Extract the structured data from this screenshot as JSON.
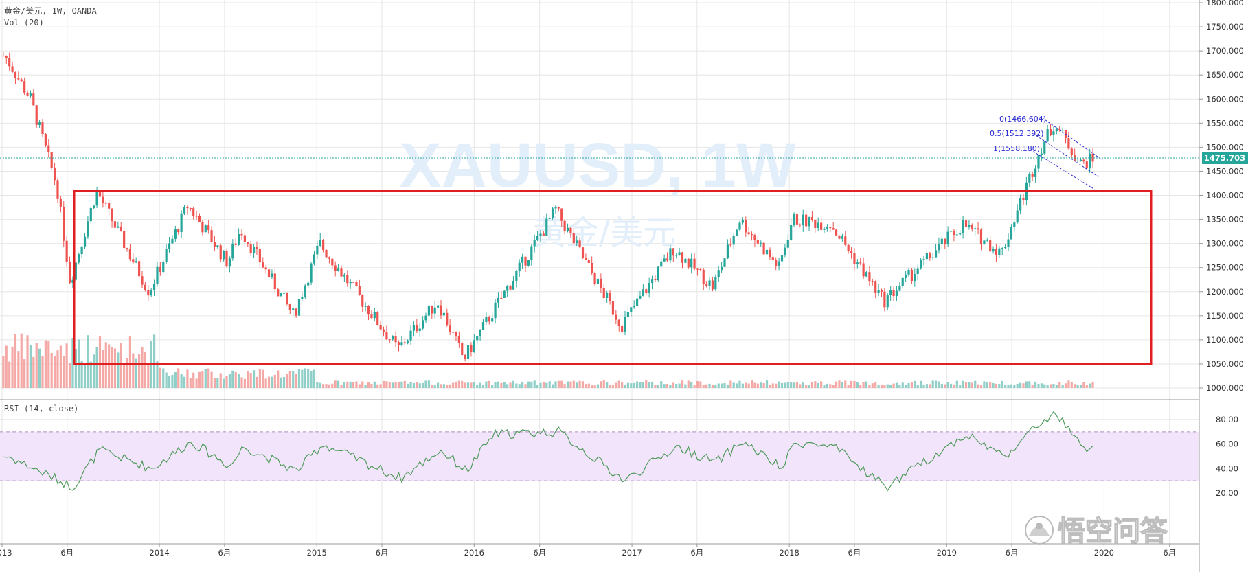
{
  "header": {
    "symbol_line": "黄金/美元, 1W, OANDA",
    "volume_label": "Vol (20)",
    "rsi_label": "RSI (14, close)"
  },
  "watermark": {
    "main": "XAUUSD, 1W",
    "sub": "黄金/美元"
  },
  "logo_text": "悟空问答",
  "colors": {
    "up": "#26a69a",
    "down": "#ef5350",
    "up_vol": "#8fcfc8",
    "down_vol": "#f4a9a6",
    "box": "#e02020",
    "last_price_bg": "#26a69a",
    "rsi_band": "#f1e4fb",
    "rsi_line": "#4f9a5a",
    "fib": "#2a2ad0"
  },
  "price_axis": {
    "ticks": [
      "1800.000",
      "1750.000",
      "1700.000",
      "1650.000",
      "1600.000",
      "1550.000",
      "1500.000",
      "1450.000",
      "1400.000",
      "1350.000",
      "1300.000",
      "1250.000",
      "1200.000",
      "1150.000",
      "1100.000",
      "1050.000",
      "1000.000"
    ],
    "min": 1000,
    "max": 1800
  },
  "last_price": "1475.703",
  "rsi_axis": {
    "ticks": [
      "80.00",
      "60.00",
      "40.00",
      "20.00"
    ],
    "band_low": 30,
    "band_high": 70
  },
  "x_axis": {
    "labels": [
      "2013",
      "6月",
      "2014",
      "6月",
      "2015",
      "6月",
      "2016",
      "6月",
      "2017",
      "6月",
      "2018",
      "6月",
      "2019",
      "6月",
      "2020",
      "6月"
    ]
  },
  "fibonacci": {
    "levels": [
      "0(1466.604)",
      "0.5(1512.392)",
      "1(1558.180)"
    ]
  },
  "chart_data": {
    "type": "candlestick",
    "title": "黄金/美元, 1W, OANDA",
    "ylim": [
      1000,
      1800
    ],
    "key_prices": [
      [
        "2013-01",
        1690
      ],
      [
        "2013-03",
        1600
      ],
      [
        "2013-05",
        1420
      ],
      [
        "2013-06",
        1220
      ],
      [
        "2013-08",
        1410
      ],
      [
        "2013-12",
        1200
      ],
      [
        "2014-03",
        1380
      ],
      [
        "2014-06",
        1260
      ],
      [
        "2014-07",
        1330
      ],
      [
        "2014-11",
        1150
      ],
      [
        "2015-01",
        1300
      ],
      [
        "2015-07",
        1080
      ],
      [
        "2015-10",
        1180
      ],
      [
        "2015-12",
        1060
      ],
      [
        "2016-07",
        1370
      ],
      [
        "2016-12",
        1130
      ],
      [
        "2017-04",
        1290
      ],
      [
        "2017-07",
        1210
      ],
      [
        "2017-09",
        1350
      ],
      [
        "2017-12",
        1250
      ],
      [
        "2018-01",
        1350
      ],
      [
        "2018-04",
        1340
      ],
      [
        "2018-08",
        1180
      ],
      [
        "2019-02",
        1340
      ],
      [
        "2019-05",
        1280
      ],
      [
        "2019-08",
        1500
      ],
      [
        "2019-09",
        1550
      ],
      [
        "2019-11",
        1465
      ],
      [
        "2019-12",
        1475
      ]
    ],
    "rsi_key": [
      [
        "2013-01",
        50
      ],
      [
        "2013-05",
        30
      ],
      [
        "2013-06",
        25
      ],
      [
        "2013-08",
        55
      ],
      [
        "2013-12",
        40
      ],
      [
        "2014-03",
        62
      ],
      [
        "2014-06",
        42
      ],
      [
        "2014-07",
        58
      ],
      [
        "2014-11",
        38
      ],
      [
        "2015-01",
        60
      ],
      [
        "2015-07",
        32
      ],
      [
        "2015-10",
        55
      ],
      [
        "2015-12",
        38
      ],
      [
        "2016-02",
        68
      ],
      [
        "2016-07",
        70
      ],
      [
        "2016-12",
        30
      ],
      [
        "2017-04",
        58
      ],
      [
        "2017-07",
        45
      ],
      [
        "2017-09",
        62
      ],
      [
        "2017-12",
        40
      ],
      [
        "2018-01",
        62
      ],
      [
        "2018-04",
        57
      ],
      [
        "2018-08",
        25
      ],
      [
        "2019-02",
        68
      ],
      [
        "2019-05",
        50
      ],
      [
        "2019-08",
        80
      ],
      [
        "2019-09",
        84
      ],
      [
        "2019-11",
        55
      ],
      [
        "2019-12",
        57
      ]
    ],
    "highlight_range": {
      "from": "2013-06",
      "to": "2019-11",
      "low": 1050,
      "high": 1410
    }
  }
}
